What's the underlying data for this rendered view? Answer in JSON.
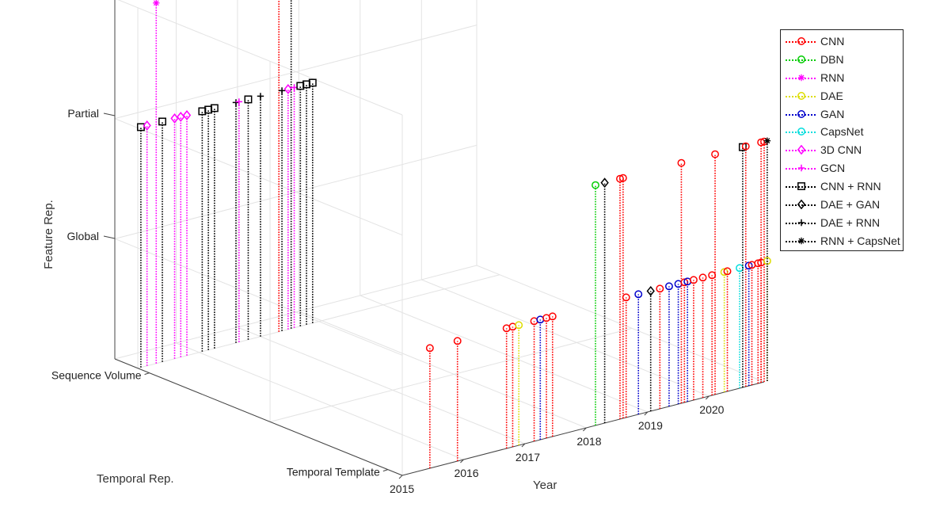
{
  "chart_data": {
    "type": "stem3d",
    "xlabel": "Year",
    "ylabel": "Temporal Rep.",
    "zlabel": "Feature Rep.",
    "x_ticks": [
      "2015",
      "2016",
      "2017",
      "2018",
      "2019",
      "2020"
    ],
    "x_range": [
      2015,
      2020.9
    ],
    "y_ticks": [
      "Temporal Template",
      "Sequence Volume"
    ],
    "z_ticks": [
      "Global",
      "Partial"
    ],
    "grid": true,
    "legend_placement": "top-right-outside",
    "series": [
      {
        "name": "CNN",
        "color": "#ff0000",
        "marker": "circle",
        "points": [
          {
            "x": 2015.45,
            "y": 1,
            "z": 1
          },
          {
            "x": 2015.9,
            "y": 1,
            "z": 1
          },
          {
            "x": 2016.7,
            "y": 1,
            "z": 1
          },
          {
            "x": 2016.8,
            "y": 1,
            "z": 1
          },
          {
            "x": 2017.15,
            "y": 1,
            "z": 1
          },
          {
            "x": 2017.35,
            "y": 1,
            "z": 1
          },
          {
            "x": 2017.45,
            "y": 1,
            "z": 1
          },
          {
            "x": 2018.65,
            "y": 1,
            "z": 1
          },
          {
            "x": 2019.2,
            "y": 1,
            "z": 1
          },
          {
            "x": 2019.6,
            "y": 1,
            "z": 1
          },
          {
            "x": 2019.75,
            "y": 1,
            "z": 1
          },
          {
            "x": 2019.9,
            "y": 1,
            "z": 1
          },
          {
            "x": 2020.05,
            "y": 1,
            "z": 1
          },
          {
            "x": 2020.3,
            "y": 1,
            "z": 1
          },
          {
            "x": 2020.7,
            "y": 1,
            "z": 1
          },
          {
            "x": 2020.8,
            "y": 1,
            "z": 1
          },
          {
            "x": 2020.85,
            "y": 1,
            "z": 1
          },
          {
            "x": 2018.55,
            "y": 1,
            "z": 2
          },
          {
            "x": 2018.6,
            "y": 1,
            "z": 2
          },
          {
            "x": 2019.55,
            "y": 1,
            "z": 2
          },
          {
            "x": 2020.1,
            "y": 1,
            "z": 2
          },
          {
            "x": 2020.6,
            "y": 1,
            "z": 2
          },
          {
            "x": 2020.85,
            "y": 1,
            "z": 2
          },
          {
            "x": 2020.9,
            "y": 1,
            "z": 2
          },
          {
            "x": 2017.3,
            "y": 2,
            "z": 3
          }
        ]
      },
      {
        "name": "DBN",
        "color": "#00cc00",
        "marker": "circle",
        "points": [
          {
            "x": 2018.15,
            "y": 1,
            "z": 2
          }
        ]
      },
      {
        "name": "RNN",
        "color": "#ff00ff",
        "marker": "asterisk",
        "points": [
          {
            "x": 2015.3,
            "y": 2,
            "z": 3
          }
        ]
      },
      {
        "name": "DAE",
        "color": "#dddd00",
        "marker": "circle",
        "points": [
          {
            "x": 2016.9,
            "y": 1,
            "z": 1
          },
          {
            "x": 2020.25,
            "y": 1,
            "z": 1
          },
          {
            "x": 2020.95,
            "y": 1,
            "z": 1
          }
        ]
      },
      {
        "name": "GAN",
        "color": "#0000cc",
        "marker": "circle",
        "points": [
          {
            "x": 2017.25,
            "y": 1,
            "z": 1
          },
          {
            "x": 2018.85,
            "y": 1,
            "z": 1
          },
          {
            "x": 2019.35,
            "y": 1,
            "z": 1
          },
          {
            "x": 2019.5,
            "y": 1,
            "z": 1
          },
          {
            "x": 2019.65,
            "y": 1,
            "z": 1
          },
          {
            "x": 2020.65,
            "y": 1,
            "z": 1
          }
        ]
      },
      {
        "name": "CapsNet",
        "color": "#00dddd",
        "marker": "circle",
        "points": [
          {
            "x": 2020.5,
            "y": 1,
            "z": 1
          }
        ]
      },
      {
        "name": "3D CNN",
        "color": "#ff00ff",
        "marker": "diamond",
        "points": [
          {
            "x": 2015.15,
            "y": 2,
            "z": 2
          },
          {
            "x": 2015.6,
            "y": 2,
            "z": 2
          },
          {
            "x": 2015.7,
            "y": 2,
            "z": 2
          },
          {
            "x": 2015.8,
            "y": 2,
            "z": 2
          },
          {
            "x": 2017.45,
            "y": 2,
            "z": 2
          }
        ]
      },
      {
        "name": "GCN",
        "color": "#ff00ff",
        "marker": "plus",
        "points": [
          {
            "x": 2016.65,
            "y": 2,
            "z": 2
          },
          {
            "x": 2017.55,
            "y": 2,
            "z": 2
          }
        ]
      },
      {
        "name": "CNN + RNN",
        "color": "#000000",
        "marker": "square",
        "points": [
          {
            "x": 2015.05,
            "y": 2,
            "z": 2
          },
          {
            "x": 2015.4,
            "y": 2,
            "z": 2
          },
          {
            "x": 2016.05,
            "y": 2,
            "z": 2
          },
          {
            "x": 2016.15,
            "y": 2,
            "z": 2
          },
          {
            "x": 2016.25,
            "y": 2,
            "z": 2
          },
          {
            "x": 2016.8,
            "y": 2,
            "z": 2
          },
          {
            "x": 2017.65,
            "y": 2,
            "z": 2
          },
          {
            "x": 2017.75,
            "y": 2,
            "z": 2
          },
          {
            "x": 2017.85,
            "y": 2,
            "z": 2
          },
          {
            "x": 2017.5,
            "y": 2,
            "z": 3
          },
          {
            "x": 2020.55,
            "y": 1,
            "z": 2
          }
        ]
      },
      {
        "name": "DAE + GAN",
        "color": "#000000",
        "marker": "diamond",
        "points": [
          {
            "x": 2018.3,
            "y": 1,
            "z": 2
          },
          {
            "x": 2019.05,
            "y": 1,
            "z": 1
          }
        ]
      },
      {
        "name": "DAE + RNN",
        "color": "#000000",
        "marker": "plus",
        "points": [
          {
            "x": 2016.6,
            "y": 2,
            "z": 2
          },
          {
            "x": 2017.0,
            "y": 2,
            "z": 2
          },
          {
            "x": 2017.35,
            "y": 2,
            "z": 2
          }
        ]
      },
      {
        "name": "RNN + CapsNet",
        "color": "#000000",
        "marker": "asterisk",
        "points": [
          {
            "x": 2020.95,
            "y": 1,
            "z": 2
          }
        ]
      }
    ]
  }
}
